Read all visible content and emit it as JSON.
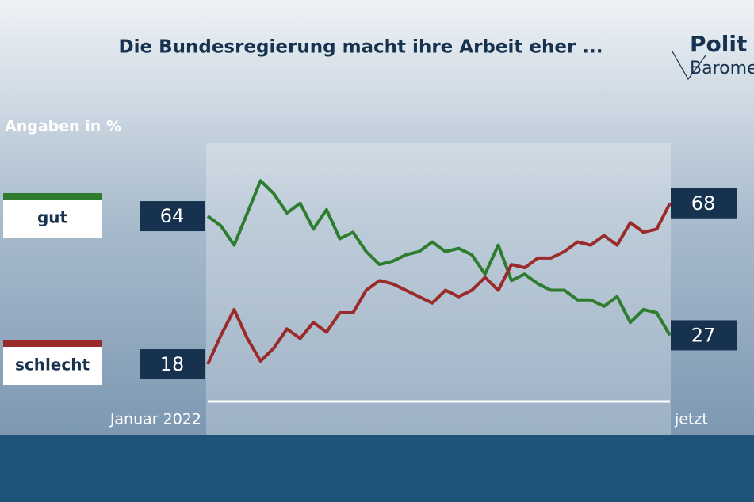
{
  "chart_data": {
    "type": "line",
    "title": "Die Bundesregierung macht ihre Arbeit eher ...",
    "subtitle": "Angaben in %",
    "logo": [
      "Polit",
      "Barome"
    ],
    "x_start_label": "Januar 2022",
    "x_end_label": "jetzt",
    "series": [
      {
        "name": "gut",
        "color": "#2e7d2e",
        "values": [
          64,
          61,
          55,
          65,
          75,
          71,
          65,
          68,
          60,
          66,
          57,
          59,
          53,
          49,
          50,
          52,
          53,
          56,
          53,
          54,
          52,
          46,
          55,
          44,
          46,
          43,
          41,
          41,
          38,
          38,
          36,
          39,
          31,
          35,
          34,
          27
        ]
      },
      {
        "name": "schlecht",
        "color": "#9b2a2a",
        "values": [
          18,
          27,
          35,
          26,
          19,
          23,
          29,
          26,
          31,
          28,
          34,
          34,
          41,
          44,
          43,
          41,
          39,
          37,
          41,
          39,
          41,
          45,
          41,
          49,
          48,
          51,
          51,
          53,
          56,
          55,
          58,
          55,
          62,
          59,
          60,
          68
        ]
      }
    ]
  }
}
